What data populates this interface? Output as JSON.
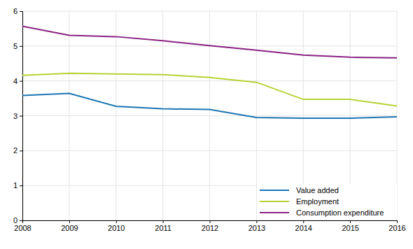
{
  "chart_data": {
    "type": "line",
    "x": [
      2008,
      2009,
      2010,
      2011,
      2012,
      2013,
      2014,
      2015,
      2016
    ],
    "series": [
      {
        "name": "Value added",
        "color": "#1c75b3",
        "values": [
          3.58,
          3.64,
          3.27,
          3.2,
          3.18,
          2.95,
          2.93,
          2.93,
          2.97
        ]
      },
      {
        "name": "Employment",
        "color": "#b5d334",
        "values": [
          4.16,
          4.22,
          4.2,
          4.18,
          4.1,
          3.96,
          3.47,
          3.47,
          3.28
        ]
      },
      {
        "name": "Consumption expenditure",
        "color": "#8a2283",
        "values": [
          5.57,
          5.31,
          5.27,
          5.15,
          5.01,
          4.88,
          4.74,
          4.68,
          4.66
        ]
      }
    ],
    "xlim": [
      2008,
      2016
    ],
    "xticks": [
      2008,
      2009,
      2010,
      2011,
      2012,
      2013,
      2014,
      2015,
      2016
    ],
    "ylim": [
      0,
      6
    ],
    "yticks": [
      0,
      1,
      2,
      3,
      4,
      5,
      6
    ],
    "grid": true,
    "legend": "lower right"
  }
}
